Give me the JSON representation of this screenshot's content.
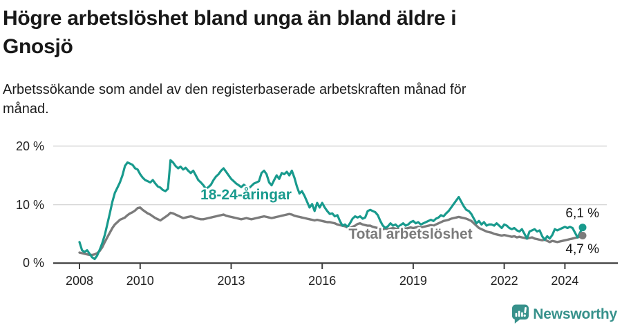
{
  "header": {
    "title_line1": "Högre arbetslöshet bland unga än bland äldre i",
    "title_line2": "Gnosjö",
    "subtitle_line1": "Arbetssökande som andel av den registerbaserade arbetskraften månad för",
    "subtitle_line2": "månad."
  },
  "footer": {
    "brand": "Newsworthy"
  },
  "colors": {
    "youth": "#189a8d",
    "total": "#7b7b7b",
    "grid": "#d8d8d8",
    "axis": "#404040",
    "brand": "#37918b",
    "text": "#141414"
  },
  "chart_data": {
    "type": "line",
    "title": "Högre arbetslöshet bland unga än bland äldre i Gnosjö",
    "subtitle": "Arbetssökande som andel av den registerbaserade arbetskraften månad för månad.",
    "x_unit": "month",
    "x_start": "2008-01",
    "x_end": "2024-08",
    "ylim": [
      0,
      20
    ],
    "grid": "horizontal",
    "yticks": [
      {
        "value": 0,
        "label": "0 %"
      },
      {
        "value": 10,
        "label": "10 %"
      },
      {
        "value": 20,
        "label": "20 %"
      }
    ],
    "xticks": [
      {
        "year": 2008,
        "label": "2008"
      },
      {
        "year": 2010,
        "label": "2010"
      },
      {
        "year": 2013,
        "label": "2013"
      },
      {
        "year": 2016,
        "label": "2016"
      },
      {
        "year": 2019,
        "label": "2019"
      },
      {
        "year": 2022,
        "label": "2022"
      },
      {
        "year": 2024,
        "label": "2024"
      }
    ],
    "series": [
      {
        "name": "18-24-åringar",
        "end_label": "6,1 %",
        "end_value": 6.1,
        "values": [
          3.6,
          2.2,
          1.9,
          2.2,
          1.6,
          1.0,
          0.7,
          1.3,
          2.3,
          3.4,
          4.8,
          6.6,
          8.5,
          10.5,
          12.0,
          12.9,
          13.8,
          15.0,
          16.6,
          17.2,
          17.0,
          16.8,
          16.2,
          16.0,
          15.2,
          14.6,
          14.2,
          14.0,
          13.8,
          14.2,
          13.6,
          13.1,
          12.9,
          12.5,
          12.3,
          12.7,
          17.6,
          17.2,
          16.6,
          16.2,
          16.5,
          16.0,
          16.3,
          15.8,
          15.4,
          15.8,
          15.0,
          14.2,
          13.8,
          13.3,
          12.7,
          13.0,
          13.4,
          14.2,
          14.8,
          15.2,
          15.8,
          16.2,
          15.6,
          15.0,
          14.4,
          14.0,
          13.6,
          13.3,
          13.0,
          13.4,
          13.1,
          12.8,
          13.2,
          13.6,
          13.8,
          14.0,
          15.4,
          15.8,
          15.2,
          13.8,
          13.3,
          14.2,
          15.0,
          14.4,
          15.4,
          15.2,
          15.6,
          15.0,
          15.8,
          14.6,
          13.1,
          11.9,
          12.3,
          11.5,
          10.5,
          9.5,
          10.1,
          8.9,
          10.3,
          9.5,
          10.3,
          9.5,
          8.9,
          8.4,
          8.5,
          8.0,
          8.2,
          7.2,
          6.4,
          6.6,
          6.2,
          6.8,
          7.6,
          8.0,
          7.8,
          8.0,
          7.6,
          7.8,
          8.9,
          9.1,
          8.9,
          8.7,
          8.2,
          7.2,
          6.4,
          6.0,
          6.3,
          6.8,
          6.4,
          6.6,
          6.2,
          6.5,
          6.8,
          6.4,
          6.6,
          7.0,
          7.2,
          6.8,
          7.0,
          6.6,
          6.8,
          7.0,
          7.2,
          7.4,
          7.2,
          7.6,
          7.8,
          8.2,
          8.0,
          8.5,
          8.9,
          9.5,
          10.1,
          10.7,
          11.3,
          10.5,
          9.7,
          9.1,
          8.9,
          8.4,
          7.6,
          6.8,
          7.2,
          6.6,
          7.0,
          6.4,
          6.6,
          6.6,
          6.4,
          6.8,
          6.4,
          6.0,
          6.6,
          6.4,
          6.0,
          5.8,
          6.0,
          5.6,
          5.4,
          5.8,
          5.0,
          4.2,
          5.4,
          5.6,
          5.8,
          5.4,
          5.6,
          4.6,
          4.0,
          4.6,
          4.2,
          4.8,
          5.8,
          5.6,
          5.8,
          6.0,
          6.2,
          6.0,
          6.2,
          6.0,
          5.2,
          4.4,
          5.2,
          6.1
        ]
      },
      {
        "name": "Total arbetslöshet",
        "end_label": "4,7 %",
        "end_value": 4.7,
        "values": [
          1.8,
          1.7,
          1.6,
          1.5,
          1.4,
          1.4,
          1.5,
          1.7,
          2.1,
          2.7,
          3.6,
          4.4,
          5.2,
          6.0,
          6.6,
          7.0,
          7.4,
          7.6,
          7.8,
          8.2,
          8.5,
          8.7,
          9.0,
          9.4,
          9.5,
          9.1,
          8.8,
          8.5,
          8.3,
          8.0,
          7.7,
          7.5,
          7.3,
          7.6,
          7.9,
          8.2,
          8.6,
          8.5,
          8.3,
          8.1,
          7.9,
          7.7,
          7.8,
          7.9,
          8.0,
          7.9,
          7.7,
          7.6,
          7.5,
          7.5,
          7.6,
          7.7,
          7.8,
          7.9,
          8.0,
          8.1,
          8.2,
          8.3,
          8.1,
          8.0,
          7.9,
          7.8,
          7.7,
          7.6,
          7.5,
          7.6,
          7.7,
          7.6,
          7.5,
          7.6,
          7.7,
          7.8,
          7.9,
          8.0,
          7.9,
          7.8,
          7.7,
          7.8,
          7.9,
          8.0,
          8.1,
          8.2,
          8.3,
          8.4,
          8.3,
          8.1,
          8.0,
          7.9,
          7.8,
          7.7,
          7.6,
          7.5,
          7.4,
          7.3,
          7.4,
          7.3,
          7.2,
          7.1,
          7.0,
          7.0,
          6.9,
          6.8,
          6.6,
          6.5,
          6.4,
          6.3,
          6.1,
          6.0,
          6.2,
          6.4,
          6.7,
          6.8,
          6.6,
          6.5,
          6.4,
          6.4,
          6.2,
          6.1,
          6.0,
          5.9,
          5.8,
          5.9,
          5.8,
          5.9,
          6.0,
          5.9,
          5.8,
          5.9,
          6.0,
          5.9,
          6.0,
          6.1,
          6.0,
          6.1,
          6.2,
          6.1,
          6.2,
          6.3,
          6.4,
          6.5,
          6.4,
          6.6,
          6.8,
          7.0,
          7.2,
          7.3,
          7.4,
          7.6,
          7.7,
          7.8,
          7.9,
          7.8,
          7.7,
          7.6,
          7.4,
          7.2,
          6.8,
          6.4,
          6.0,
          5.8,
          5.6,
          5.4,
          5.3,
          5.2,
          5.0,
          4.9,
          4.8,
          4.7,
          4.8,
          4.7,
          4.6,
          4.5,
          4.6,
          4.4,
          4.5,
          4.4,
          4.3,
          4.2,
          4.3,
          4.4,
          4.2,
          4.1,
          4.0,
          3.9,
          4.0,
          3.8,
          3.6,
          3.8,
          3.7,
          3.6,
          3.7,
          3.8,
          3.9,
          4.0,
          4.1,
          4.2,
          4.3,
          4.4,
          4.5,
          4.7
        ]
      }
    ]
  }
}
